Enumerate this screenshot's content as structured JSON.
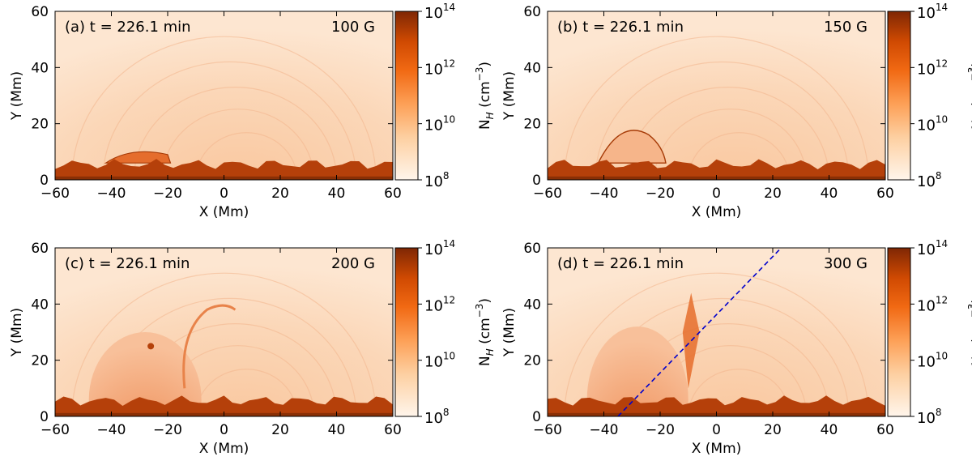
{
  "chart_data": {
    "type": "heatmap",
    "colormap": "Oranges (log scale)",
    "shared": {
      "xlabel": "X (Mm)",
      "ylabel": "Y (Mm)",
      "xlim": [
        -60,
        60
      ],
      "ylim": [
        0,
        60
      ],
      "xticks": [
        -60,
        -40,
        -20,
        0,
        20,
        40,
        60
      ],
      "xtick_labels": [
        "−60",
        "−40",
        "−20",
        "0",
        "20",
        "40",
        "60"
      ],
      "yticks": [
        0,
        20,
        40,
        60
      ],
      "ytick_labels": [
        "0",
        "20",
        "40",
        "60"
      ],
      "colorbar": {
        "label_main": "N",
        "label_sub": "H",
        "label_units": " (cm",
        "label_exp": "−3",
        "label_close": ")",
        "range_log10": [
          8,
          14
        ],
        "ticks": [
          {
            "base": "10",
            "exp": "8",
            "log": 8
          },
          {
            "base": "10",
            "exp": "10",
            "log": 10
          },
          {
            "base": "10",
            "exp": "12",
            "log": 12
          },
          {
            "base": "10",
            "exp": "14",
            "log": 14
          }
        ]
      }
    },
    "panels": [
      {
        "id": "a",
        "label": "(a)  t = 226.1 min",
        "field": "100 G",
        "dashed_line": null
      },
      {
        "id": "b",
        "label": "(b)  t = 226.1 min",
        "field": "150 G",
        "dashed_line": null
      },
      {
        "id": "c",
        "label": "(c)  t = 226.1 min",
        "field": "200 G",
        "dashed_line": null
      },
      {
        "id": "d",
        "label": "(d)  t = 226.1 min",
        "field": "300 G",
        "dashed_line": {
          "from": [
            -35,
            0
          ],
          "to": [
            23,
            60
          ],
          "color": "#0000cc"
        }
      }
    ]
  }
}
